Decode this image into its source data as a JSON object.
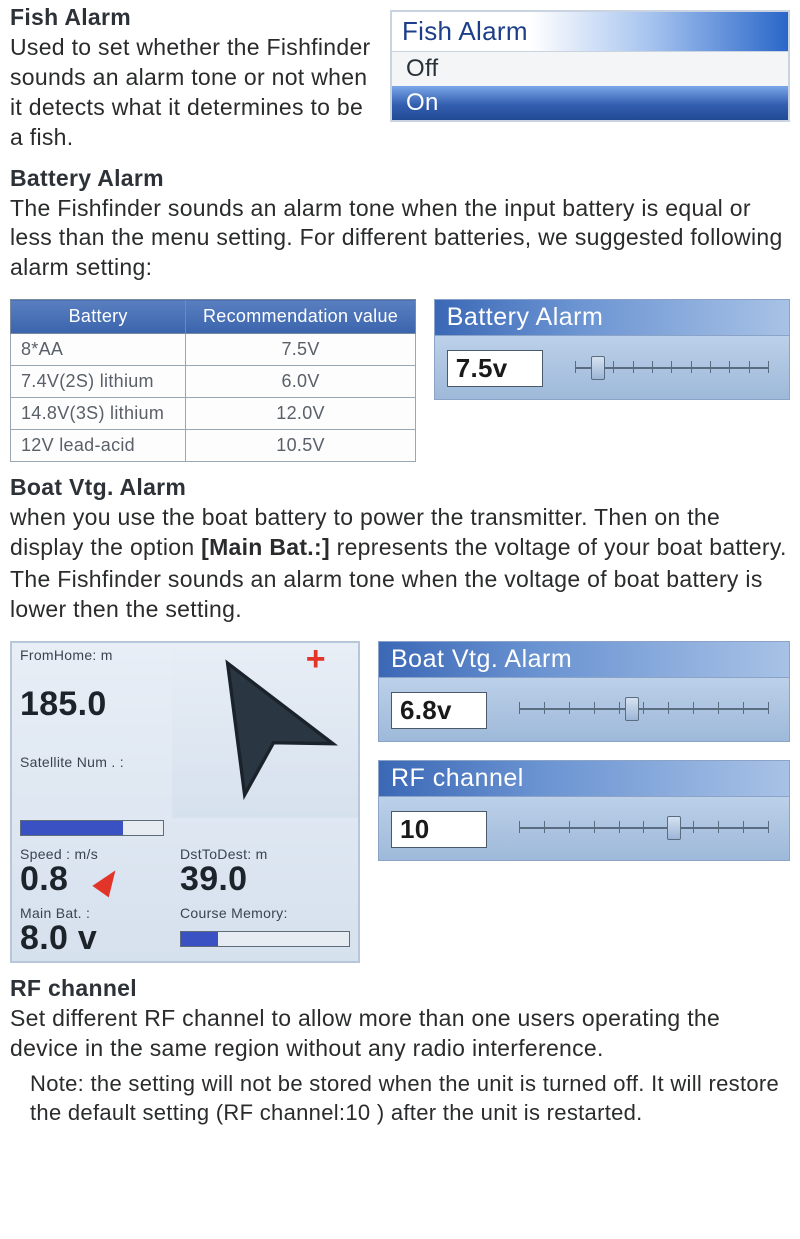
{
  "fishAlarm": {
    "heading": "Fish Alarm",
    "body": "Used to set whether the Fishfinder sounds an alarm tone or not when it detects what it determines to be a fish.",
    "menuTitle": "Fish Alarm",
    "option_off": "Off",
    "option_on": "On",
    "selected": "On"
  },
  "batteryAlarm": {
    "heading": "Battery Alarm",
    "body": "The Fishfinder sounds an alarm tone when the input battery is equal or less than the menu setting. For different batteries, we suggested following alarm setting:",
    "table": {
      "col1": "Battery",
      "col2": "Recommendation value",
      "rows": [
        {
          "b": "8*AA",
          "v": "7.5V"
        },
        {
          "b": "7.4V(2S) lithium",
          "v": "6.0V"
        },
        {
          "b": "14.8V(3S) lithium",
          "v": "12.0V"
        },
        {
          "b": "12V lead-acid",
          "v": "10.5V"
        }
      ]
    },
    "panelTitle": "Battery Alarm",
    "panelValue": "7.5v",
    "thumb_pct": 12
  },
  "boatVtg": {
    "heading": "Boat Vtg. Alarm",
    "body1": "when you use the boat battery to power the transmitter. Then on the display the option ",
    "bold": "[Main Bat.:]",
    "body2": " represents the voltage of your boat battery.",
    "body3": "The Fishfinder sounds an alarm tone when the voltage of boat battery is lower then the setting.",
    "panelTitle": "Boat Vtg. Alarm",
    "panelValue": "6.8v",
    "thumb_pct": 45
  },
  "gps": {
    "fromHome_lbl": "FromHome: m",
    "fromHome_val": "185.0",
    "sat_lbl": "Satellite Num . :",
    "sat_fill_pct": 72,
    "speed_lbl": "Speed : m/s",
    "speed_val": "0.8",
    "mainBat_lbl": "Main Bat.  :",
    "mainBat_val": "8.0 v",
    "dst_lbl": "DstToDest: m",
    "dst_val": "39.0",
    "course_lbl": "Course Memory:",
    "course_fill_pct": 22,
    "compass_heading_deg": -30
  },
  "rf": {
    "panelTitle": "RF channel",
    "panelValue": "10",
    "thumb_pct": 62,
    "heading": "RF channel",
    "body": "Set different RF channel to allow more than one users operating the device in the same region without any radio interference.",
    "note": "Note: the setting will not be stored when the unit is turned off. It will restore the default setting (RF channel:10 ) after the unit is restarted."
  },
  "colors": {
    "banner_start": "#3b68b6",
    "banner_end": "#a8c2e6",
    "selected_start": "#7aa6e8",
    "selected_end": "#224a94",
    "table_header_start": "#5a7fc0",
    "table_header_end": "#3a64ad",
    "panel_bg_start": "#bcd0e9",
    "panel_bg_end": "#9eb9d9"
  }
}
